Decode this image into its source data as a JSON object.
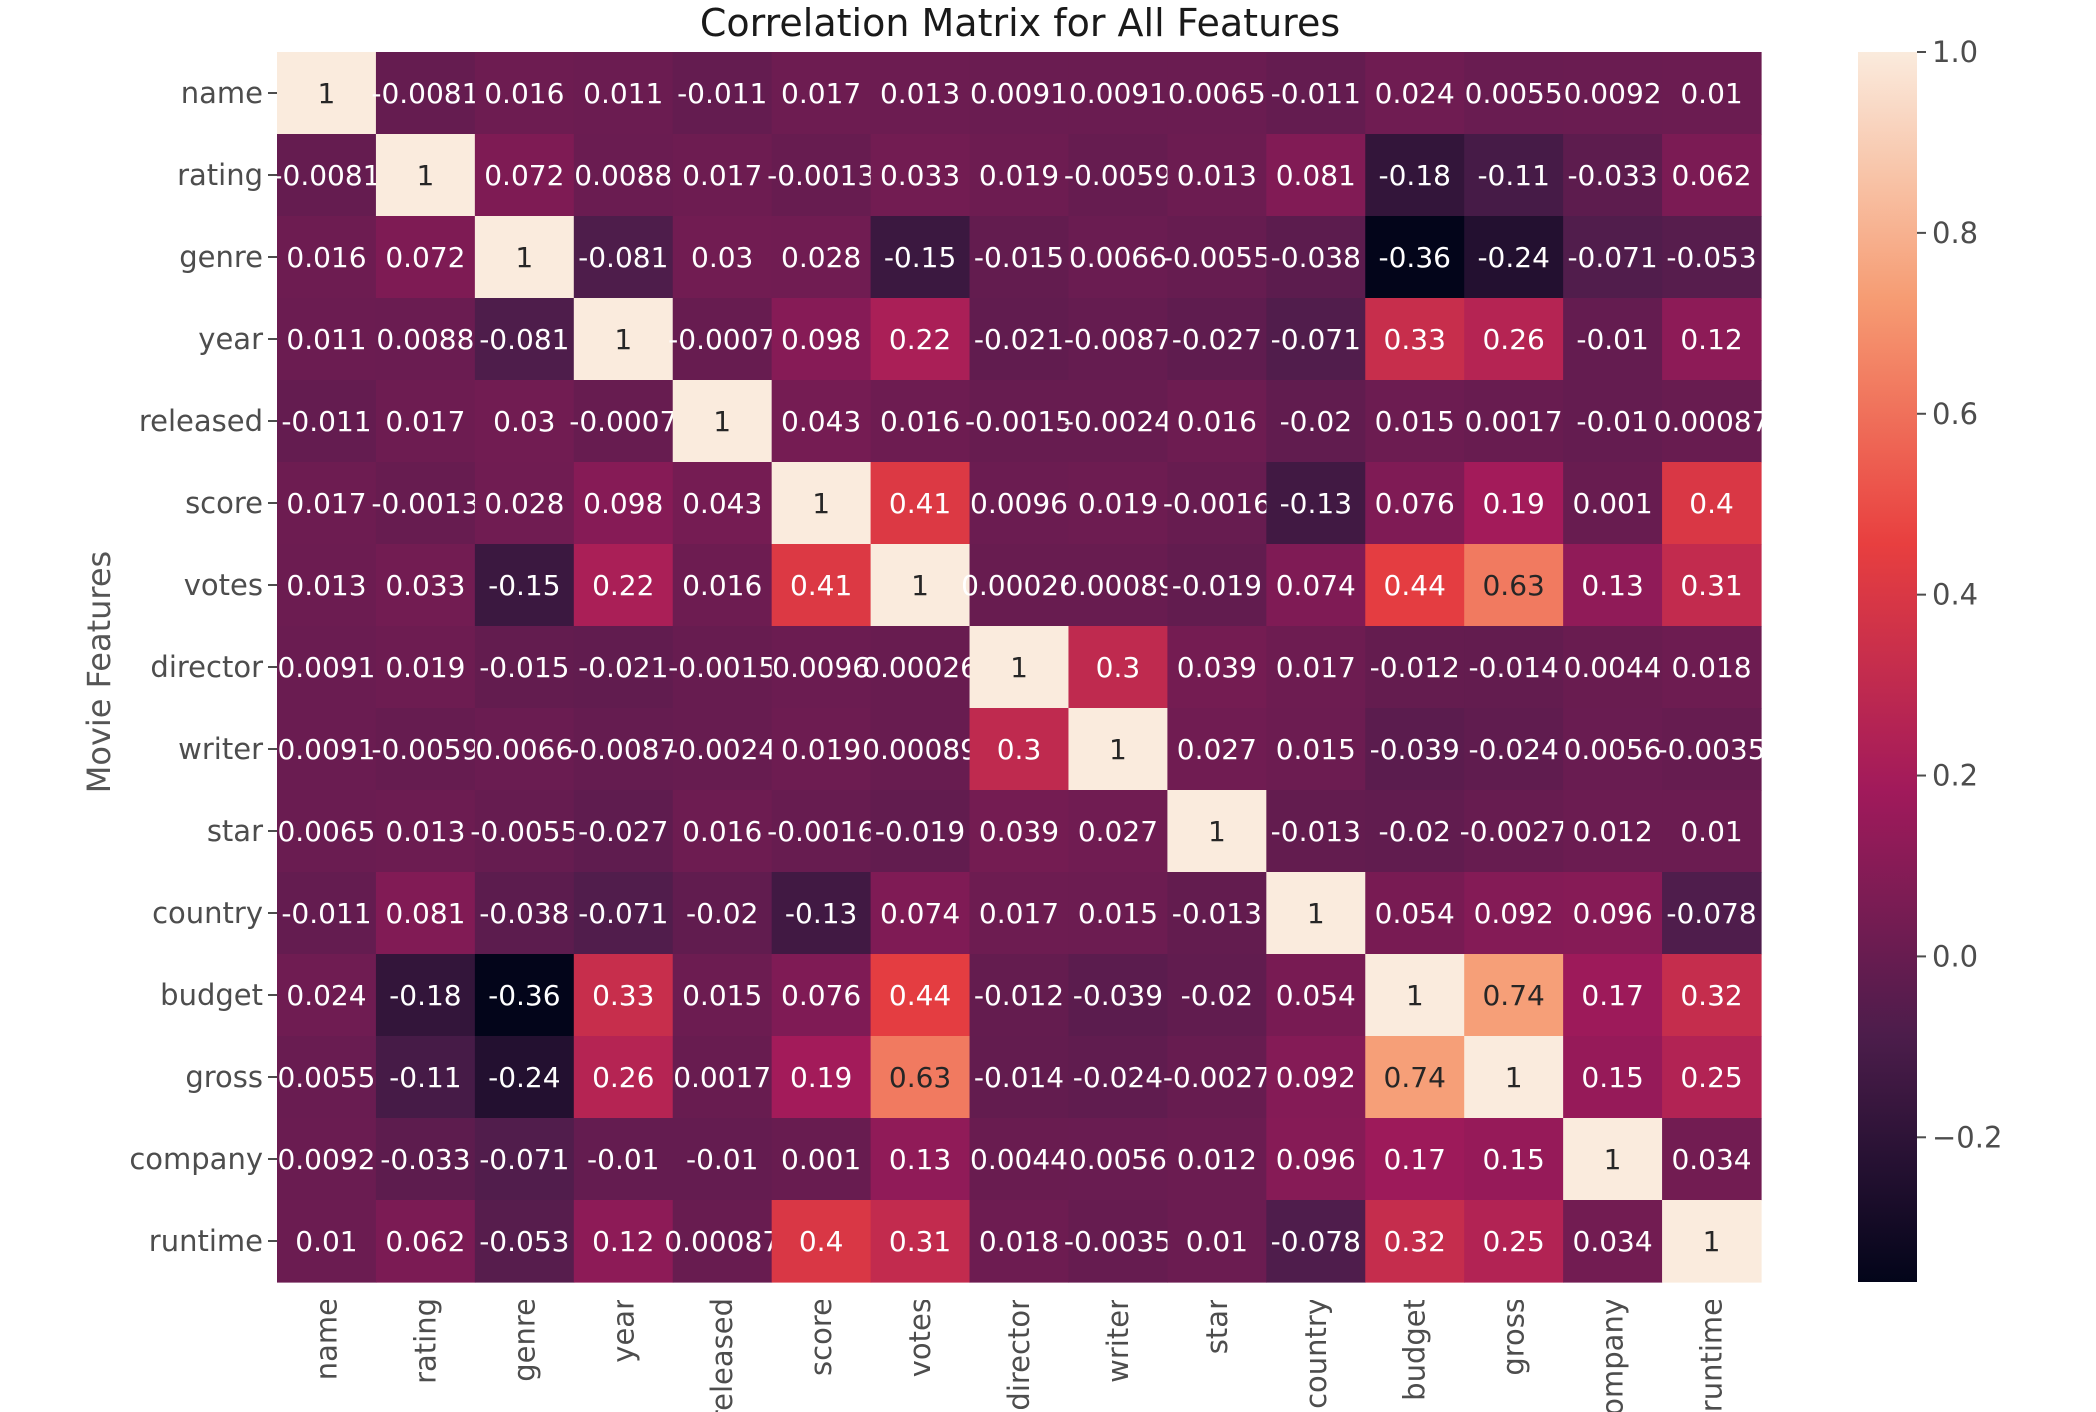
{
  "chart_data": {
    "type": "heatmap",
    "title": "Correlation Matrix for All Features",
    "ylabel": "Movie Features",
    "xlabel": "",
    "labels": [
      "name",
      "rating",
      "genre",
      "year",
      "released",
      "score",
      "votes",
      "director",
      "writer",
      "star",
      "country",
      "budget",
      "gross",
      "company",
      "runtime"
    ],
    "values": [
      [
        1,
        -0.0081,
        0.016,
        0.011,
        -0.011,
        0.017,
        0.013,
        0.0091,
        0.0091,
        0.0065,
        -0.011,
        0.024,
        0.0055,
        0.0092,
        0.01
      ],
      [
        -0.0081,
        1,
        0.072,
        0.0088,
        0.017,
        -0.0013,
        0.033,
        0.019,
        -0.0059,
        0.013,
        0.081,
        -0.18,
        -0.11,
        -0.033,
        0.062
      ],
      [
        0.016,
        0.072,
        1,
        -0.081,
        0.03,
        0.028,
        -0.15,
        -0.015,
        0.0066,
        -0.0055,
        -0.038,
        -0.36,
        -0.24,
        -0.071,
        -0.053
      ],
      [
        0.011,
        0.0088,
        -0.081,
        1,
        -0.0007,
        0.098,
        0.22,
        -0.021,
        -0.0087,
        -0.027,
        -0.071,
        0.33,
        0.26,
        -0.01,
        0.12
      ],
      [
        -0.011,
        0.017,
        0.03,
        -0.0007,
        1,
        0.043,
        0.016,
        -0.0015,
        -0.0024,
        0.016,
        -0.02,
        0.015,
        0.0017,
        -0.01,
        0.00087
      ],
      [
        0.017,
        -0.0013,
        0.028,
        0.098,
        0.043,
        1,
        0.41,
        0.0096,
        0.019,
        -0.0016,
        -0.13,
        0.076,
        0.19,
        0.001,
        0.4
      ],
      [
        0.013,
        0.033,
        -0.15,
        0.22,
        0.016,
        0.41,
        1,
        0.00026,
        0.00089,
        -0.019,
        0.074,
        0.44,
        0.63,
        0.13,
        0.31
      ],
      [
        0.0091,
        0.019,
        -0.015,
        -0.021,
        -0.0015,
        0.0096,
        0.00026,
        1,
        0.3,
        0.039,
        0.017,
        -0.012,
        -0.014,
        0.0044,
        0.018
      ],
      [
        0.0091,
        -0.0059,
        0.0066,
        -0.0087,
        -0.0024,
        0.019,
        0.00089,
        0.3,
        1,
        0.027,
        0.015,
        -0.039,
        -0.024,
        0.0056,
        -0.0035
      ],
      [
        0.0065,
        0.013,
        -0.0055,
        -0.027,
        0.016,
        -0.0016,
        -0.019,
        0.039,
        0.027,
        1,
        -0.013,
        -0.02,
        -0.0027,
        0.012,
        0.01
      ],
      [
        -0.011,
        0.081,
        -0.038,
        -0.071,
        -0.02,
        -0.13,
        0.074,
        0.017,
        0.015,
        -0.013,
        1,
        0.054,
        0.092,
        0.096,
        -0.078
      ],
      [
        0.024,
        -0.18,
        -0.36,
        0.33,
        0.015,
        0.076,
        0.44,
        -0.012,
        -0.039,
        -0.02,
        0.054,
        1,
        0.74,
        0.17,
        0.32
      ],
      [
        0.0055,
        -0.11,
        -0.24,
        0.26,
        0.0017,
        0.19,
        0.63,
        -0.014,
        -0.024,
        -0.0027,
        0.092,
        0.74,
        1,
        0.15,
        0.25
      ],
      [
        0.0092,
        -0.033,
        -0.071,
        -0.01,
        -0.01,
        0.001,
        0.13,
        0.0044,
        0.0056,
        0.012,
        0.096,
        0.17,
        0.15,
        1,
        0.034
      ],
      [
        0.01,
        0.062,
        -0.053,
        0.12,
        0.00087,
        0.4,
        0.31,
        0.018,
        -0.0035,
        0.01,
        -0.078,
        0.32,
        0.25,
        0.034,
        1
      ]
    ],
    "value_range": [
      -0.36,
      1.0
    ],
    "colorbar": {
      "ticks": [
        -0.2,
        0.0,
        0.2,
        0.4,
        0.6,
        0.8,
        1.0
      ],
      "tick_labels": [
        "−0.2",
        "0.0",
        "0.2",
        "0.4",
        "0.6",
        "0.8",
        "1.0"
      ]
    },
    "colormap": [
      "#03051a",
      "#4c1d4b",
      "#a11a5b",
      "#e83f3f",
      "#f69c73",
      "#faebdd"
    ],
    "annotations": true,
    "grid": false
  }
}
